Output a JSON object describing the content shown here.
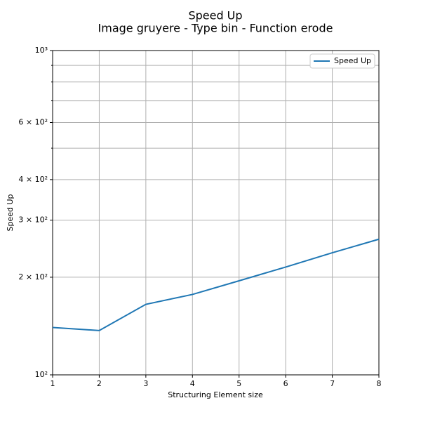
{
  "chart_data": {
    "type": "line",
    "title": "Speed Up",
    "subtitle": "Image gruyere - Type bin - Function erode",
    "x_label": "Structuring Element size",
    "y_label": "Speed Up",
    "x": [
      1,
      2,
      3,
      4,
      5,
      6,
      7,
      8
    ],
    "series": [
      {
        "name": "Speed Up",
        "color": "#1f77b4",
        "values": [
          140,
          137,
          165,
          177,
          195,
          215,
          238,
          262
        ]
      }
    ],
    "xlim": [
      1,
      8
    ],
    "xticks": [
      1,
      2,
      3,
      4,
      5,
      6,
      7,
      8
    ],
    "ylim": [
      100,
      1000
    ],
    "y_log": true,
    "yticks": [
      {
        "value": 100,
        "label": "10²"
      },
      {
        "value": 200,
        "label": "2 × 10²"
      },
      {
        "value": 300,
        "label": "3 × 10²"
      },
      {
        "value": 400,
        "label": "4 × 10²"
      },
      {
        "value": 600,
        "label": "6 × 10²"
      },
      {
        "value": 1000,
        "label": "10³"
      }
    ],
    "y_minor_ticks": [
      500,
      700,
      800,
      900
    ],
    "grid": true,
    "legend": "upper-right"
  }
}
